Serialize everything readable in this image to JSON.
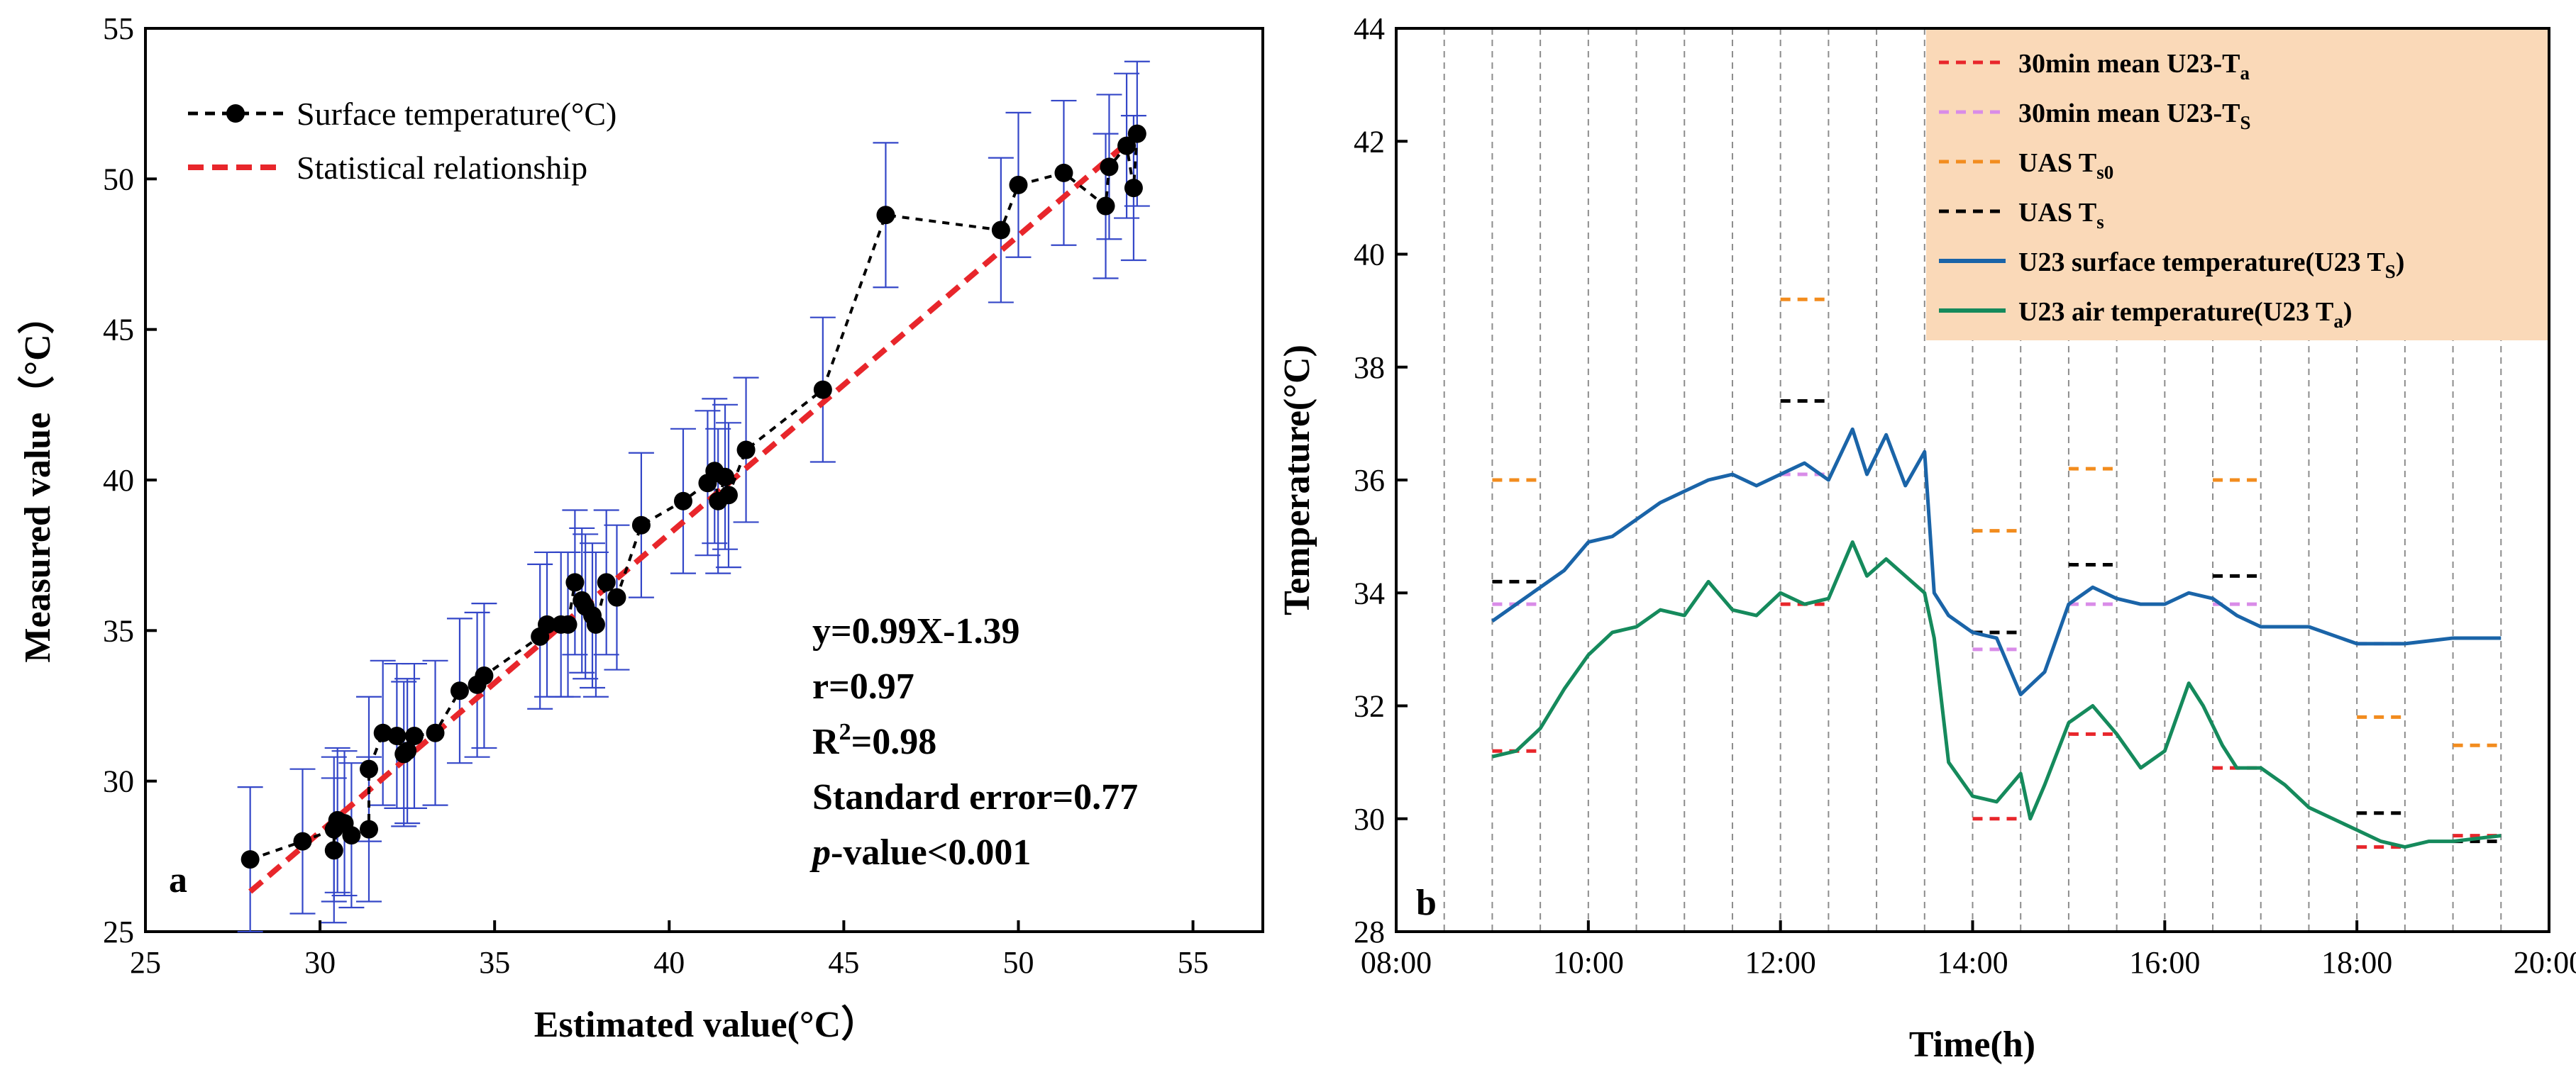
{
  "chart_data": [
    {
      "panel": "a",
      "type": "scatter",
      "xlabel": "Estimated value(°C）",
      "ylabel": "Measured value（°C）",
      "xlim": [
        25,
        57
      ],
      "ylim": [
        25,
        55
      ],
      "xticks": [
        "25",
        "30",
        "35",
        "40",
        "45",
        "50",
        "55"
      ],
      "yticks": [
        "25",
        "30",
        "35",
        "40",
        "45",
        "50",
        "55"
      ],
      "legend_position": "top-left",
      "legend": [
        {
          "label": "Surface temperature(°C)",
          "style": "black dashed line with dots"
        },
        {
          "label": "Statistical relationship",
          "style": "red dashed line"
        }
      ],
      "series": [
        {
          "name": "Surface temperature(°C)",
          "points": [
            [
              28.0,
              27.4
            ],
            [
              29.5,
              28.0
            ],
            [
              30.4,
              28.4
            ],
            [
              30.4,
              27.7
            ],
            [
              30.5,
              28.7
            ],
            [
              30.7,
              28.6
            ],
            [
              30.9,
              28.2
            ],
            [
              31.4,
              28.4
            ],
            [
              31.4,
              30.4
            ],
            [
              31.8,
              31.6
            ],
            [
              32.2,
              31.5
            ],
            [
              32.4,
              30.9
            ],
            [
              32.5,
              31.0
            ],
            [
              32.7,
              31.5
            ],
            [
              33.3,
              31.6
            ],
            [
              34.0,
              33.0
            ],
            [
              34.5,
              33.2
            ],
            [
              34.7,
              33.5
            ],
            [
              36.3,
              34.8
            ],
            [
              36.5,
              35.2
            ],
            [
              36.9,
              35.2
            ],
            [
              37.1,
              35.2
            ],
            [
              37.3,
              36.6
            ],
            [
              37.5,
              36.0
            ],
            [
              37.6,
              35.8
            ],
            [
              37.8,
              35.5
            ],
            [
              37.9,
              35.2
            ],
            [
              38.2,
              36.6
            ],
            [
              38.5,
              36.1
            ],
            [
              39.2,
              38.5
            ],
            [
              40.4,
              39.3
            ],
            [
              41.1,
              39.9
            ],
            [
              41.3,
              40.3
            ],
            [
              41.4,
              39.3
            ],
            [
              41.6,
              40.1
            ],
            [
              41.7,
              39.5
            ],
            [
              42.2,
              41.0
            ],
            [
              44.4,
              43.0
            ],
            [
              46.2,
              48.8
            ],
            [
              49.5,
              48.3
            ],
            [
              50.0,
              49.8
            ],
            [
              51.3,
              50.2
            ],
            [
              52.5,
              49.1
            ],
            [
              52.6,
              50.4
            ],
            [
              53.1,
              51.1
            ],
            [
              53.3,
              49.7
            ],
            [
              53.4,
              51.5
            ]
          ],
          "error": 2.4
        },
        {
          "name": "Statistical relationship",
          "x": [
            28.0,
            53.4
          ],
          "y": [
            26.33,
            51.48
          ]
        }
      ],
      "annotations": {
        "eq": "y=0.99X-1.39",
        "r": "r=0.97",
        "r2_prefix": "R",
        "r2_sup": "2",
        "r2_suffix": "=0.98",
        "se": "Standard error=0.77",
        "p_italic": "p",
        "p_rest": "-value<0.001"
      }
    },
    {
      "panel": "b",
      "type": "line",
      "xlabel": "Time(h)",
      "ylabel": "Temperature(°C)",
      "xlim": [
        "08:00",
        "20:00"
      ],
      "ylim": [
        28,
        44
      ],
      "xticks": [
        "08:00",
        "10:00",
        "12:00",
        "14:00",
        "16:00",
        "18:00",
        "20:00"
      ],
      "yticks": [
        "28",
        "30",
        "32",
        "34",
        "36",
        "38",
        "40",
        "42",
        "44"
      ],
      "vertical_gridlines_hours": [
        8.5,
        9,
        9.5,
        10,
        10.5,
        11,
        11.5,
        12,
        12.5,
        13,
        13.5,
        14,
        14.5,
        15,
        15.5,
        16,
        16.5,
        17,
        17.5,
        18,
        18.5,
        19,
        19.5
      ],
      "legend_position": "top-right",
      "legend_background": "#FAD9B8",
      "legend": [
        {
          "main": "30min mean U23-T",
          "sub": "a",
          "tail": "",
          "color": "#E8262B",
          "style": "dashed"
        },
        {
          "main": "30min mean U23-T",
          "sub": "S",
          "tail": "",
          "color": "#D98CE8",
          "style": "dashed"
        },
        {
          "main": "UAS  T",
          "sub": "s0",
          "tail": "",
          "color": "#F28C1E",
          "style": "dashed"
        },
        {
          "main": "UAS  T",
          "sub": "s",
          "tail": "",
          "color": "#000000",
          "style": "dashed"
        },
        {
          "main": "U23 surface temperature(U23 T",
          "sub": "S",
          "tail": ")",
          "color": "#1A64A8",
          "style": "solid"
        },
        {
          "main": "U23 air temperature(U23 T",
          "sub": "a",
          "tail": ")",
          "color": "#158A5C",
          "style": "solid"
        }
      ],
      "series": [
        {
          "name": "U23 surface temperature(U23 T_S)",
          "color": "#1A64A8",
          "time": [
            9.0,
            9.25,
            9.5,
            9.75,
            10.0,
            10.25,
            10.5,
            10.75,
            11.0,
            11.25,
            11.5,
            11.75,
            12.0,
            12.25,
            12.5,
            12.75,
            12.9,
            13.1,
            13.3,
            13.5,
            13.6,
            13.75,
            14.0,
            14.25,
            14.5,
            14.75,
            15.0,
            15.25,
            15.5,
            15.75,
            16.0,
            16.25,
            16.5,
            16.75,
            17.0,
            17.5,
            18.0,
            18.5,
            19.0,
            19.5
          ],
          "temp": [
            33.5,
            33.8,
            34.1,
            34.4,
            34.9,
            35.0,
            35.3,
            35.6,
            35.8,
            36.0,
            36.1,
            35.9,
            36.1,
            36.3,
            36.0,
            36.9,
            36.1,
            36.8,
            35.9,
            36.5,
            34.0,
            33.6,
            33.3,
            33.2,
            32.2,
            32.6,
            33.8,
            34.1,
            33.9,
            33.8,
            33.8,
            34.0,
            33.9,
            33.6,
            33.4,
            33.4,
            33.1,
            33.1,
            33.2,
            33.2
          ]
        },
        {
          "name": "U23 air temperature(U23 T_a)",
          "color": "#158A5C",
          "time": [
            9.0,
            9.25,
            9.5,
            9.75,
            10.0,
            10.25,
            10.5,
            10.75,
            11.0,
            11.25,
            11.5,
            11.75,
            12.0,
            12.25,
            12.5,
            12.75,
            12.9,
            13.1,
            13.3,
            13.5,
            13.6,
            13.75,
            14.0,
            14.25,
            14.5,
            14.6,
            14.75,
            15.0,
            15.25,
            15.5,
            15.75,
            16.0,
            16.25,
            16.4,
            16.6,
            16.75,
            17.0,
            17.25,
            17.5,
            18.0,
            18.25,
            18.5,
            18.75,
            19.0,
            19.5
          ],
          "temp": [
            31.1,
            31.2,
            31.6,
            32.3,
            32.9,
            33.3,
            33.4,
            33.7,
            33.6,
            34.2,
            33.7,
            33.6,
            34.0,
            33.8,
            33.9,
            34.9,
            34.3,
            34.6,
            34.3,
            34.0,
            33.2,
            31.0,
            30.4,
            30.3,
            30.8,
            30.0,
            30.6,
            31.7,
            32.0,
            31.5,
            30.9,
            31.2,
            32.4,
            32.0,
            31.3,
            30.9,
            30.9,
            30.6,
            30.2,
            29.8,
            29.6,
            29.5,
            29.6,
            29.6,
            29.7
          ]
        },
        {
          "name": "30min mean U23-T_a",
          "color": "#E8262B",
          "segments": [
            [
              9.0,
              9.5,
              31.2
            ],
            [
              12.0,
              12.5,
              33.8
            ],
            [
              14.0,
              14.5,
              30.0
            ],
            [
              15.0,
              15.5,
              31.5
            ],
            [
              16.5,
              17.0,
              30.9
            ],
            [
              18.0,
              18.5,
              29.5
            ],
            [
              19.0,
              19.5,
              29.7
            ]
          ]
        },
        {
          "name": "30min mean U23-T_S",
          "color": "#D98CE8",
          "segments": [
            [
              9.0,
              9.5,
              33.8
            ],
            [
              12.0,
              12.5,
              36.1
            ],
            [
              14.0,
              14.5,
              33.0
            ],
            [
              15.0,
              15.5,
              33.8
            ],
            [
              16.5,
              17.0,
              33.8
            ],
            [
              18.0,
              18.5,
              33.1
            ],
            [
              19.0,
              19.5,
              33.2
            ]
          ]
        },
        {
          "name": "UAS T_s0",
          "color": "#F28C1E",
          "segments": [
            [
              9.0,
              9.5,
              36.0
            ],
            [
              12.0,
              12.5,
              39.2
            ],
            [
              14.0,
              14.5,
              35.1
            ],
            [
              15.0,
              15.5,
              36.2
            ],
            [
              16.5,
              17.0,
              36.0
            ],
            [
              18.0,
              18.5,
              31.8
            ],
            [
              19.0,
              19.5,
              31.3
            ]
          ]
        },
        {
          "name": "UAS T_s",
          "color": "#000000",
          "segments": [
            [
              9.0,
              9.5,
              34.2
            ],
            [
              12.0,
              12.5,
              37.4
            ],
            [
              14.0,
              14.5,
              33.3
            ],
            [
              15.0,
              15.5,
              34.5
            ],
            [
              16.5,
              17.0,
              34.3
            ],
            [
              18.0,
              18.5,
              30.1
            ],
            [
              19.0,
              19.5,
              29.6
            ]
          ]
        }
      ]
    }
  ]
}
